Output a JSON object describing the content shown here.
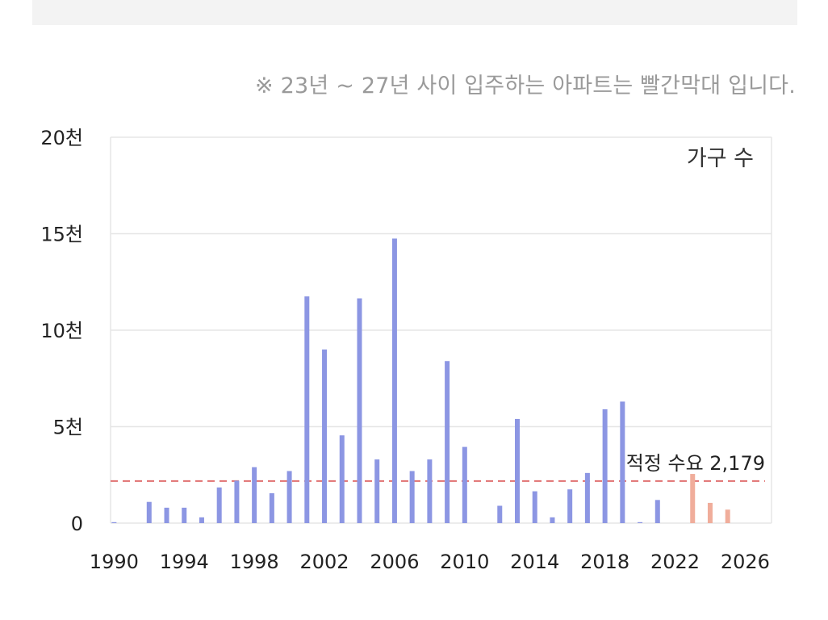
{
  "note": "※ 23년 ~ 27년 사이 입주하는 아파트는 빨간막대 입니다.",
  "colors": {
    "past": "#8c96e3",
    "future": "#f0ad9b",
    "reference": "#e07070",
    "grid": "#e6e6e6"
  },
  "chart_data": {
    "type": "bar",
    "legend_label": "가구 수",
    "legend_position": "top-right",
    "x": [
      1990,
      1991,
      1992,
      1993,
      1994,
      1995,
      1996,
      1997,
      1998,
      1999,
      2000,
      2001,
      2002,
      2003,
      2004,
      2005,
      2006,
      2007,
      2008,
      2009,
      2010,
      2011,
      2012,
      2013,
      2014,
      2015,
      2016,
      2017,
      2018,
      2019,
      2020,
      2021,
      2022,
      2023,
      2024,
      2025,
      2026
    ],
    "values": [
      50,
      0,
      1100,
      800,
      800,
      300,
      1850,
      2200,
      2900,
      1550,
      2700,
      11750,
      9000,
      4550,
      11650,
      3300,
      14750,
      2700,
      3300,
      8400,
      3950,
      0,
      900,
      5400,
      1650,
      300,
      1750,
      2600,
      5900,
      6300,
      50,
      1200,
      0,
      2550,
      1050,
      700,
      0
    ],
    "future_from_year": 2023,
    "ylim": [
      0,
      20000
    ],
    "yticks": [
      0,
      5000,
      10000,
      15000,
      20000
    ],
    "ytick_labels": [
      "0",
      "5천",
      "10천",
      "15천",
      "20천"
    ],
    "xlim": [
      1989.8,
      2027.5
    ],
    "xticks": [
      1990,
      1994,
      1998,
      2002,
      2006,
      2010,
      2014,
      2018,
      2022,
      2026
    ],
    "xtick_labels": [
      "1990",
      "1994",
      "1998",
      "2002",
      "2006",
      "2010",
      "2014",
      "2018",
      "2022",
      "2026"
    ],
    "reference_line": {
      "value": 2179,
      "label": "적정 수요 2,179"
    },
    "grid": true
  }
}
